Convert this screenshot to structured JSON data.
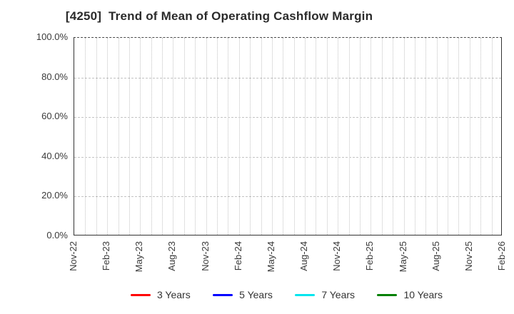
{
  "chart_data": {
    "type": "line",
    "title": "[4250]  Trend of Mean of Operating Cashflow Margin",
    "xlabel": "",
    "ylabel": "",
    "x_tick_labels": [
      "Nov-22",
      "Feb-23",
      "May-23",
      "Aug-23",
      "Nov-23",
      "Feb-24",
      "May-24",
      "Aug-24",
      "Nov-24",
      "Feb-25",
      "May-25",
      "Aug-25",
      "Nov-25",
      "Feb-26"
    ],
    "months_between_labels": 3,
    "y_tick_labels": [
      "100.0%",
      "80.0%",
      "60.0%",
      "40.0%",
      "20.0%",
      "0.0%"
    ],
    "ylim": [
      0,
      100
    ],
    "y_tick_step": 20,
    "grid": true,
    "legend_position": "bottom",
    "series": [
      {
        "name": "3 Years",
        "color": "#ff0000",
        "values": []
      },
      {
        "name": "5 Years",
        "color": "#0000ff",
        "values": []
      },
      {
        "name": "7 Years",
        "color": "#00e5ee",
        "values": []
      },
      {
        "name": "10 Years",
        "color": "#008000",
        "values": []
      }
    ]
  },
  "colors": {
    "spine": "#333333",
    "grid": "#c3c3c3",
    "title_text": "#2b2b2b",
    "tick_text": "#3a3a3a"
  }
}
